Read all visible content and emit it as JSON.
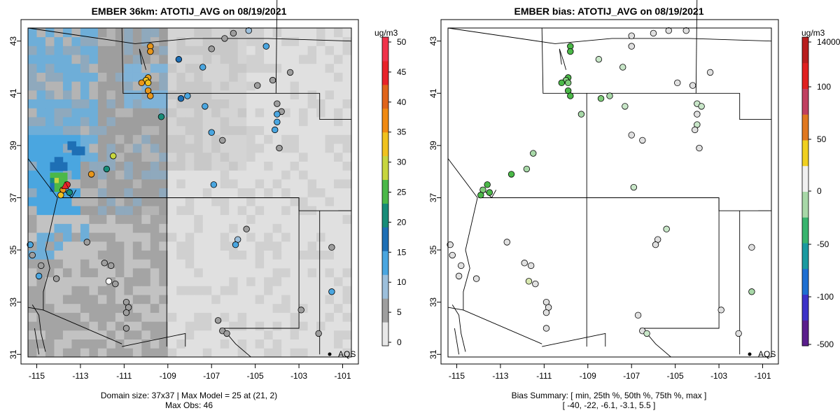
{
  "left": {
    "title": "EMBER 36km: ATOTIJ_AVG on 08/19/2021",
    "units": "ug/m3",
    "caption_line1": "Domain size: 37x37 | Max Model = 25 at (21, 2)",
    "caption_line2": "Max Obs: 46",
    "legend_label": "AQS",
    "colorbar_ticks": [
      "0",
      "5",
      "10",
      "15",
      "20",
      "25",
      "30",
      "35",
      "40",
      "45",
      "50"
    ],
    "colorbar_colors": [
      "#e8e8e8",
      "#9e9e9e",
      "#9cbfdb",
      "#4aa6e0",
      "#1e6fb5",
      "#178c78",
      "#4bb848",
      "#c7d63e",
      "#f0c21f",
      "#f08a12",
      "#e0641a",
      "#e8232a",
      "#f0324a"
    ]
  },
  "right": {
    "title": "EMBER bias: ATOTIJ_AVG on 08/19/2021",
    "units": "ug/m3",
    "caption_line1": "Bias Summary: [ min, 25th %, 50th %, 75th %, max ]",
    "caption_line2": "[ -40,   -22,   -6.1,   -3.1,   5.5 ]",
    "legend_label": "AQS",
    "colorbar_ticks": [
      "-500",
      "-100",
      "-50",
      "0",
      "50",
      "100",
      "14000"
    ],
    "colorbar_colors": [
      "#5a1e8c",
      "#3c32c8",
      "#1e6fd2",
      "#1a9aa0",
      "#38b46e",
      "#a8d8a8",
      "#f0f0f0",
      "#f0d020",
      "#e07820",
      "#c04060",
      "#e02020",
      "#b81e1e"
    ]
  },
  "axes": {
    "x_ticks": [
      "-115",
      "-113",
      "-111",
      "-109",
      "-107",
      "-105",
      "-103",
      "-101"
    ],
    "y_ticks": [
      "31",
      "33",
      "35",
      "37",
      "39",
      "41",
      "43"
    ],
    "x_range": [
      -115.4,
      -100.6
    ],
    "y_range": [
      30.9,
      43.5
    ]
  },
  "stations_left": [
    [
      -109.8,
      42.8,
      "#e8961a"
    ],
    [
      -109.8,
      42.6,
      "#e8961a"
    ],
    [
      -109.9,
      41.6,
      "#e8a21a"
    ],
    [
      -110.0,
      41.5,
      "#f0c21f"
    ],
    [
      -110.2,
      41.4,
      "#e8961a"
    ],
    [
      -109.9,
      41.4,
      "#f0c21f"
    ],
    [
      -109.9,
      41.1,
      "#e8961a"
    ],
    [
      -109.8,
      40.9,
      "#e8961a"
    ],
    [
      -109.3,
      40.1,
      "#178c78"
    ],
    [
      -108.4,
      40.8,
      "#1e6fb5"
    ],
    [
      -108.1,
      40.9,
      "#4aa6e0"
    ],
    [
      -107.3,
      40.5,
      "#4aa6e0"
    ],
    [
      -108.5,
      42.3,
      "#1e6fb5"
    ],
    [
      -107.4,
      42.0,
      "#4aa6e0"
    ],
    [
      -111.5,
      38.6,
      "#c7d63e"
    ],
    [
      -111.8,
      38.1,
      "#178c78"
    ],
    [
      -112.5,
      37.9,
      "#e8961a"
    ],
    [
      -113.6,
      37.5,
      "#e8232a"
    ],
    [
      -113.8,
      37.3,
      "#e8961a"
    ],
    [
      -113.9,
      37.1,
      "#f0c21f"
    ],
    [
      -113.5,
      37.2,
      "#178c78"
    ],
    [
      -107.0,
      39.5,
      "#4aa6e0"
    ],
    [
      -106.5,
      39.2,
      "#9e9e9e"
    ],
    [
      -104.9,
      41.3,
      "#9e9e9e"
    ],
    [
      -104.2,
      41.5,
      "#9e9e9e"
    ],
    [
      -103.4,
      41.8,
      "#9e9e9e"
    ],
    [
      -104.0,
      40.6,
      "#9e9e9e"
    ],
    [
      -103.8,
      40.3,
      "#9e9e9e"
    ],
    [
      -104.0,
      40.2,
      "#4aa6e0"
    ],
    [
      -104.0,
      39.9,
      "#4aa6e0"
    ],
    [
      -104.1,
      39.6,
      "#4aa6e0"
    ],
    [
      -103.9,
      38.9,
      "#9e9e9e"
    ],
    [
      -106.0,
      43.3,
      "#9e9e9e"
    ],
    [
      -105.3,
      43.4,
      "#9cbfdb"
    ],
    [
      -104.5,
      42.8,
      "#4aa6e0"
    ],
    [
      -107.0,
      42.7,
      "#9e9e9e"
    ],
    [
      -106.4,
      43.1,
      "#9e9e9e"
    ],
    [
      -106.9,
      37.5,
      "#4aa6e0"
    ],
    [
      -105.4,
      35.8,
      "#9e9e9e"
    ],
    [
      -105.8,
      35.4,
      "#9cbfdb"
    ],
    [
      -105.9,
      35.2,
      "#4aa6e0"
    ],
    [
      -112.7,
      35.3,
      "#9e9e9e"
    ],
    [
      -115.3,
      35.2,
      "#4aa6e0"
    ],
    [
      -115.2,
      34.8,
      "#9e9e9e"
    ],
    [
      -114.8,
      34.4,
      "#9e9e9e"
    ],
    [
      -114.9,
      34.0,
      "#4aa6e0"
    ],
    [
      -114.1,
      33.9,
      "#9e9e9e"
    ],
    [
      -111.9,
      34.5,
      "#9e9e9e"
    ],
    [
      -111.6,
      34.4,
      "#9e9e9e"
    ],
    [
      -111.7,
      33.8,
      "#ffffff"
    ],
    [
      -111.4,
      33.7,
      "#9e9e9e"
    ],
    [
      -110.9,
      33.0,
      "#9e9e9e"
    ],
    [
      -110.8,
      32.8,
      "#9e9e9e"
    ],
    [
      -110.9,
      32.6,
      "#9e9e9e"
    ],
    [
      -110.9,
      32.0,
      "#9e9e9e"
    ],
    [
      -106.7,
      32.3,
      "#9e9e9e"
    ],
    [
      -106.5,
      31.9,
      "#9e9e9e"
    ],
    [
      -106.3,
      31.8,
      "#9e9e9e"
    ],
    [
      -102.9,
      32.7,
      "#9e9e9e"
    ],
    [
      -102.1,
      31.8,
      "#9e9e9e"
    ],
    [
      -101.5,
      35.1,
      "#9e9e9e"
    ],
    [
      -101.5,
      33.4,
      "#4aa6e0"
    ]
  ],
  "stations_right": [
    [
      -109.8,
      42.8,
      "#4bb848"
    ],
    [
      -109.8,
      42.6,
      "#4bb848"
    ],
    [
      -109.9,
      41.6,
      "#4bb848"
    ],
    [
      -110.0,
      41.5,
      "#7fcc7a"
    ],
    [
      -110.2,
      41.4,
      "#4bb848"
    ],
    [
      -109.9,
      41.4,
      "#7fcc7a"
    ],
    [
      -109.9,
      41.1,
      "#4bb848"
    ],
    [
      -109.8,
      40.9,
      "#4bb848"
    ],
    [
      -109.3,
      40.2,
      "#a8d8a8"
    ],
    [
      -108.4,
      40.8,
      "#7fcc7a"
    ],
    [
      -108.0,
      40.9,
      "#a8d8a8"
    ],
    [
      -107.3,
      40.5,
      "#c8e6c8"
    ],
    [
      -108.5,
      42.3,
      "#c8e6c8"
    ],
    [
      -107.4,
      42.0,
      "#c8e6c8"
    ],
    [
      -111.5,
      38.7,
      "#a8d8a8"
    ],
    [
      -111.8,
      38.1,
      "#a8d8a8"
    ],
    [
      -112.5,
      37.9,
      "#4bb848"
    ],
    [
      -113.6,
      37.5,
      "#4bb848"
    ],
    [
      -113.8,
      37.3,
      "#7fcc7a"
    ],
    [
      -113.9,
      37.1,
      "#4bb848"
    ],
    [
      -113.5,
      37.2,
      "#4bb848"
    ],
    [
      -107.0,
      39.4,
      "#e0e0e0"
    ],
    [
      -106.5,
      39.2,
      "#e0e0e0"
    ],
    [
      -104.9,
      41.4,
      "#e0e0e0"
    ],
    [
      -104.2,
      41.3,
      "#e0e0e0"
    ],
    [
      -103.4,
      41.8,
      "#e0e0e0"
    ],
    [
      -104.0,
      40.6,
      "#c8e6c8"
    ],
    [
      -103.8,
      40.5,
      "#c8e6c8"
    ],
    [
      -104.0,
      40.2,
      "#e0e0e0"
    ],
    [
      -104.0,
      39.8,
      "#c8e6c8"
    ],
    [
      -104.1,
      39.6,
      "#e0e0e0"
    ],
    [
      -103.9,
      38.9,
      "#e0e0e0"
    ],
    [
      -106.0,
      43.3,
      "#e0e0e0"
    ],
    [
      -105.3,
      43.4,
      "#e0e0e0"
    ],
    [
      -104.5,
      43.4,
      "#e0e0e0"
    ],
    [
      -107.0,
      43.2,
      "#e0e0e0"
    ],
    [
      -107.0,
      42.8,
      "#e0e0e0"
    ],
    [
      -106.9,
      37.4,
      "#c8e6c8"
    ],
    [
      -105.4,
      35.8,
      "#c8e6c8"
    ],
    [
      -105.8,
      35.4,
      "#e0e0e0"
    ],
    [
      -105.9,
      35.2,
      "#e0e0e0"
    ],
    [
      -112.7,
      35.3,
      "#e0e0e0"
    ],
    [
      -115.3,
      35.2,
      "#e0e0e0"
    ],
    [
      -115.2,
      34.8,
      "#e0e0e0"
    ],
    [
      -114.8,
      34.4,
      "#e0e0e0"
    ],
    [
      -114.9,
      34.0,
      "#e0e0e0"
    ],
    [
      -114.1,
      33.9,
      "#e0e0e0"
    ],
    [
      -111.9,
      34.5,
      "#e0e0e0"
    ],
    [
      -111.6,
      34.4,
      "#e0e0e0"
    ],
    [
      -111.7,
      33.8,
      "#d8e8b0"
    ],
    [
      -111.4,
      33.7,
      "#e0e0e0"
    ],
    [
      -110.9,
      33.0,
      "#e0e0e0"
    ],
    [
      -110.8,
      32.8,
      "#e0e0e0"
    ],
    [
      -110.9,
      32.6,
      "#e0e0e0"
    ],
    [
      -110.9,
      32.0,
      "#e0e0e0"
    ],
    [
      -106.7,
      32.5,
      "#e0e0e0"
    ],
    [
      -106.5,
      31.9,
      "#e0e0e0"
    ],
    [
      -106.3,
      31.8,
      "#c8e6c8"
    ],
    [
      -102.9,
      32.7,
      "#e0e0e0"
    ],
    [
      -102.1,
      31.8,
      "#e0e0e0"
    ],
    [
      -101.5,
      35.1,
      "#e0e0e0"
    ],
    [
      -101.5,
      33.4,
      "#a8d8a8"
    ]
  ],
  "hotspot_cells": [
    [
      -114.2,
      37.8,
      "#4bb848"
    ],
    [
      -114.0,
      37.8,
      "#4bb848"
    ],
    [
      -113.8,
      37.8,
      "#4bb848"
    ],
    [
      -114.2,
      37.6,
      "#178c78"
    ],
    [
      -114.0,
      37.6,
      "#c7d63e"
    ],
    [
      -113.8,
      37.6,
      "#4bb848"
    ],
    [
      -114.2,
      37.4,
      "#1e6fb5"
    ],
    [
      -114.0,
      37.4,
      "#4bb848"
    ],
    [
      -114.2,
      38.2,
      "#1e6fb5"
    ],
    [
      -114.0,
      38.2,
      "#1e6fb5"
    ],
    [
      -113.8,
      38.2,
      "#1e6fb5"
    ],
    [
      -114.0,
      38.4,
      "#1e6fb5"
    ],
    [
      -113.2,
      38.8,
      "#1e6fb5"
    ],
    [
      -113.0,
      38.8,
      "#1e6fb5"
    ],
    [
      -113.4,
      39.0,
      "#1e6fb5"
    ]
  ]
}
